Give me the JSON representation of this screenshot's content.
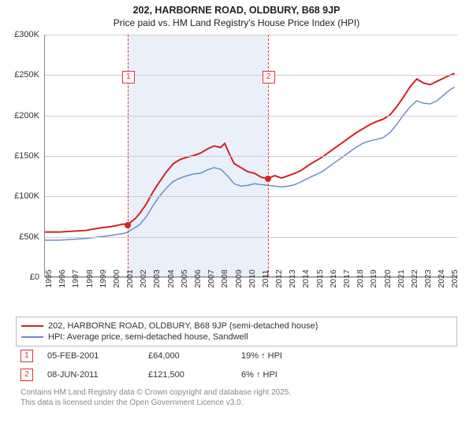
{
  "title_line1": "202, HARBORNE ROAD, OLDBURY, B68 9JP",
  "title_line2": "Price paid vs. HM Land Registry's House Price Index (HPI)",
  "chart": {
    "type": "line",
    "background_color": "#ffffff",
    "grid_color": "#cccccc",
    "axis_color": "#888888",
    "shade_color": "#eaf0fa",
    "x_start": 1995,
    "x_end": 2025.5,
    "x_ticks": [
      1995,
      1996,
      1997,
      1998,
      1999,
      2000,
      2001,
      2002,
      2003,
      2004,
      2005,
      2006,
      2007,
      2008,
      2009,
      2010,
      2011,
      2012,
      2013,
      2014,
      2015,
      2016,
      2017,
      2018,
      2019,
      2020,
      2021,
      2022,
      2023,
      2024,
      2025
    ],
    "y_min": 0,
    "y_max": 300000,
    "y_ticks": [
      0,
      50000,
      100000,
      150000,
      200000,
      250000,
      300000
    ],
    "y_tick_labels": [
      "£0",
      "£50K",
      "£100K",
      "£150K",
      "£200K",
      "£250K",
      "£300K"
    ],
    "shade_start": 2001.1,
    "shade_end": 2011.45,
    "series_property": {
      "color": "#d22222",
      "width": 2,
      "label": "202, HARBORNE ROAD, OLDBURY, B68 9JP (semi-detached house)",
      "points": [
        [
          1995,
          55000
        ],
        [
          1996,
          55000
        ],
        [
          1997,
          56000
        ],
        [
          1998,
          57000
        ],
        [
          1999,
          60000
        ],
        [
          2000,
          62000
        ],
        [
          2000.8,
          65000
        ],
        [
          2001.1,
          64000
        ],
        [
          2001.7,
          72000
        ],
        [
          2002,
          78000
        ],
        [
          2002.5,
          90000
        ],
        [
          2003,
          105000
        ],
        [
          2003.5,
          118000
        ],
        [
          2004,
          130000
        ],
        [
          2004.5,
          140000
        ],
        [
          2005,
          145000
        ],
        [
          2005.5,
          148000
        ],
        [
          2006,
          150000
        ],
        [
          2006.5,
          153000
        ],
        [
          2007,
          158000
        ],
        [
          2007.5,
          162000
        ],
        [
          2008,
          160000
        ],
        [
          2008.3,
          165000
        ],
        [
          2008.7,
          150000
        ],
        [
          2009,
          140000
        ],
        [
          2009.5,
          135000
        ],
        [
          2010,
          130000
        ],
        [
          2010.5,
          128000
        ],
        [
          2011,
          123000
        ],
        [
          2011.45,
          121500
        ],
        [
          2012,
          125000
        ],
        [
          2012.5,
          122000
        ],
        [
          2013,
          125000
        ],
        [
          2013.5,
          128000
        ],
        [
          2014,
          132000
        ],
        [
          2014.5,
          138000
        ],
        [
          2015,
          143000
        ],
        [
          2015.5,
          148000
        ],
        [
          2016,
          154000
        ],
        [
          2016.5,
          160000
        ],
        [
          2017,
          166000
        ],
        [
          2017.5,
          172000
        ],
        [
          2018,
          178000
        ],
        [
          2018.5,
          183000
        ],
        [
          2019,
          188000
        ],
        [
          2019.5,
          192000
        ],
        [
          2020,
          195000
        ],
        [
          2020.5,
          200000
        ],
        [
          2021,
          210000
        ],
        [
          2021.5,
          222000
        ],
        [
          2022,
          235000
        ],
        [
          2022.5,
          245000
        ],
        [
          2023,
          240000
        ],
        [
          2023.5,
          238000
        ],
        [
          2024,
          242000
        ],
        [
          2024.5,
          246000
        ],
        [
          2025,
          250000
        ],
        [
          2025.3,
          252000
        ]
      ]
    },
    "series_hpi": {
      "color": "#6a8fc5",
      "width": 1.5,
      "label": "HPI: Average price, semi-detached house, Sandwell",
      "points": [
        [
          1995,
          45000
        ],
        [
          1996,
          45000
        ],
        [
          1997,
          46000
        ],
        [
          1998,
          47000
        ],
        [
          1999,
          49000
        ],
        [
          2000,
          51000
        ],
        [
          2001,
          54000
        ],
        [
          2002,
          64000
        ],
        [
          2002.5,
          74000
        ],
        [
          2003,
          88000
        ],
        [
          2003.5,
          100000
        ],
        [
          2004,
          110000
        ],
        [
          2004.5,
          118000
        ],
        [
          2005,
          122000
        ],
        [
          2005.5,
          125000
        ],
        [
          2006,
          127000
        ],
        [
          2006.5,
          128000
        ],
        [
          2007,
          132000
        ],
        [
          2007.5,
          135000
        ],
        [
          2008,
          133000
        ],
        [
          2008.5,
          125000
        ],
        [
          2009,
          115000
        ],
        [
          2009.5,
          112000
        ],
        [
          2010,
          113000
        ],
        [
          2010.5,
          115000
        ],
        [
          2011,
          114000
        ],
        [
          2011.5,
          113000
        ],
        [
          2012,
          112000
        ],
        [
          2012.5,
          111000
        ],
        [
          2013,
          112000
        ],
        [
          2013.5,
          114000
        ],
        [
          2014,
          118000
        ],
        [
          2014.5,
          122000
        ],
        [
          2015,
          126000
        ],
        [
          2015.5,
          130000
        ],
        [
          2016,
          136000
        ],
        [
          2016.5,
          142000
        ],
        [
          2017,
          148000
        ],
        [
          2017.5,
          154000
        ],
        [
          2018,
          160000
        ],
        [
          2018.5,
          165000
        ],
        [
          2019,
          168000
        ],
        [
          2019.5,
          170000
        ],
        [
          2020,
          172000
        ],
        [
          2020.5,
          178000
        ],
        [
          2021,
          188000
        ],
        [
          2021.5,
          200000
        ],
        [
          2022,
          210000
        ],
        [
          2022.5,
          218000
        ],
        [
          2023,
          215000
        ],
        [
          2023.5,
          214000
        ],
        [
          2024,
          218000
        ],
        [
          2024.5,
          225000
        ],
        [
          2025,
          232000
        ],
        [
          2025.3,
          235000
        ]
      ]
    },
    "markers": [
      {
        "n": "1",
        "x": 2001.1,
        "y": 64000,
        "box_y": 255000
      },
      {
        "n": "2",
        "x": 2011.45,
        "y": 121500,
        "box_y": 255000
      }
    ]
  },
  "transactions": [
    {
      "n": "1",
      "date": "05-FEB-2001",
      "price": "£64,000",
      "diff": "19% ↑ HPI"
    },
    {
      "n": "2",
      "date": "08-JUN-2011",
      "price": "£121,500",
      "diff": "6% ↑ HPI"
    }
  ],
  "footer_line1": "Contains HM Land Registry data © Crown copyright and database right 2025.",
  "footer_line2": "This data is licensed under the Open Government Licence v3.0."
}
